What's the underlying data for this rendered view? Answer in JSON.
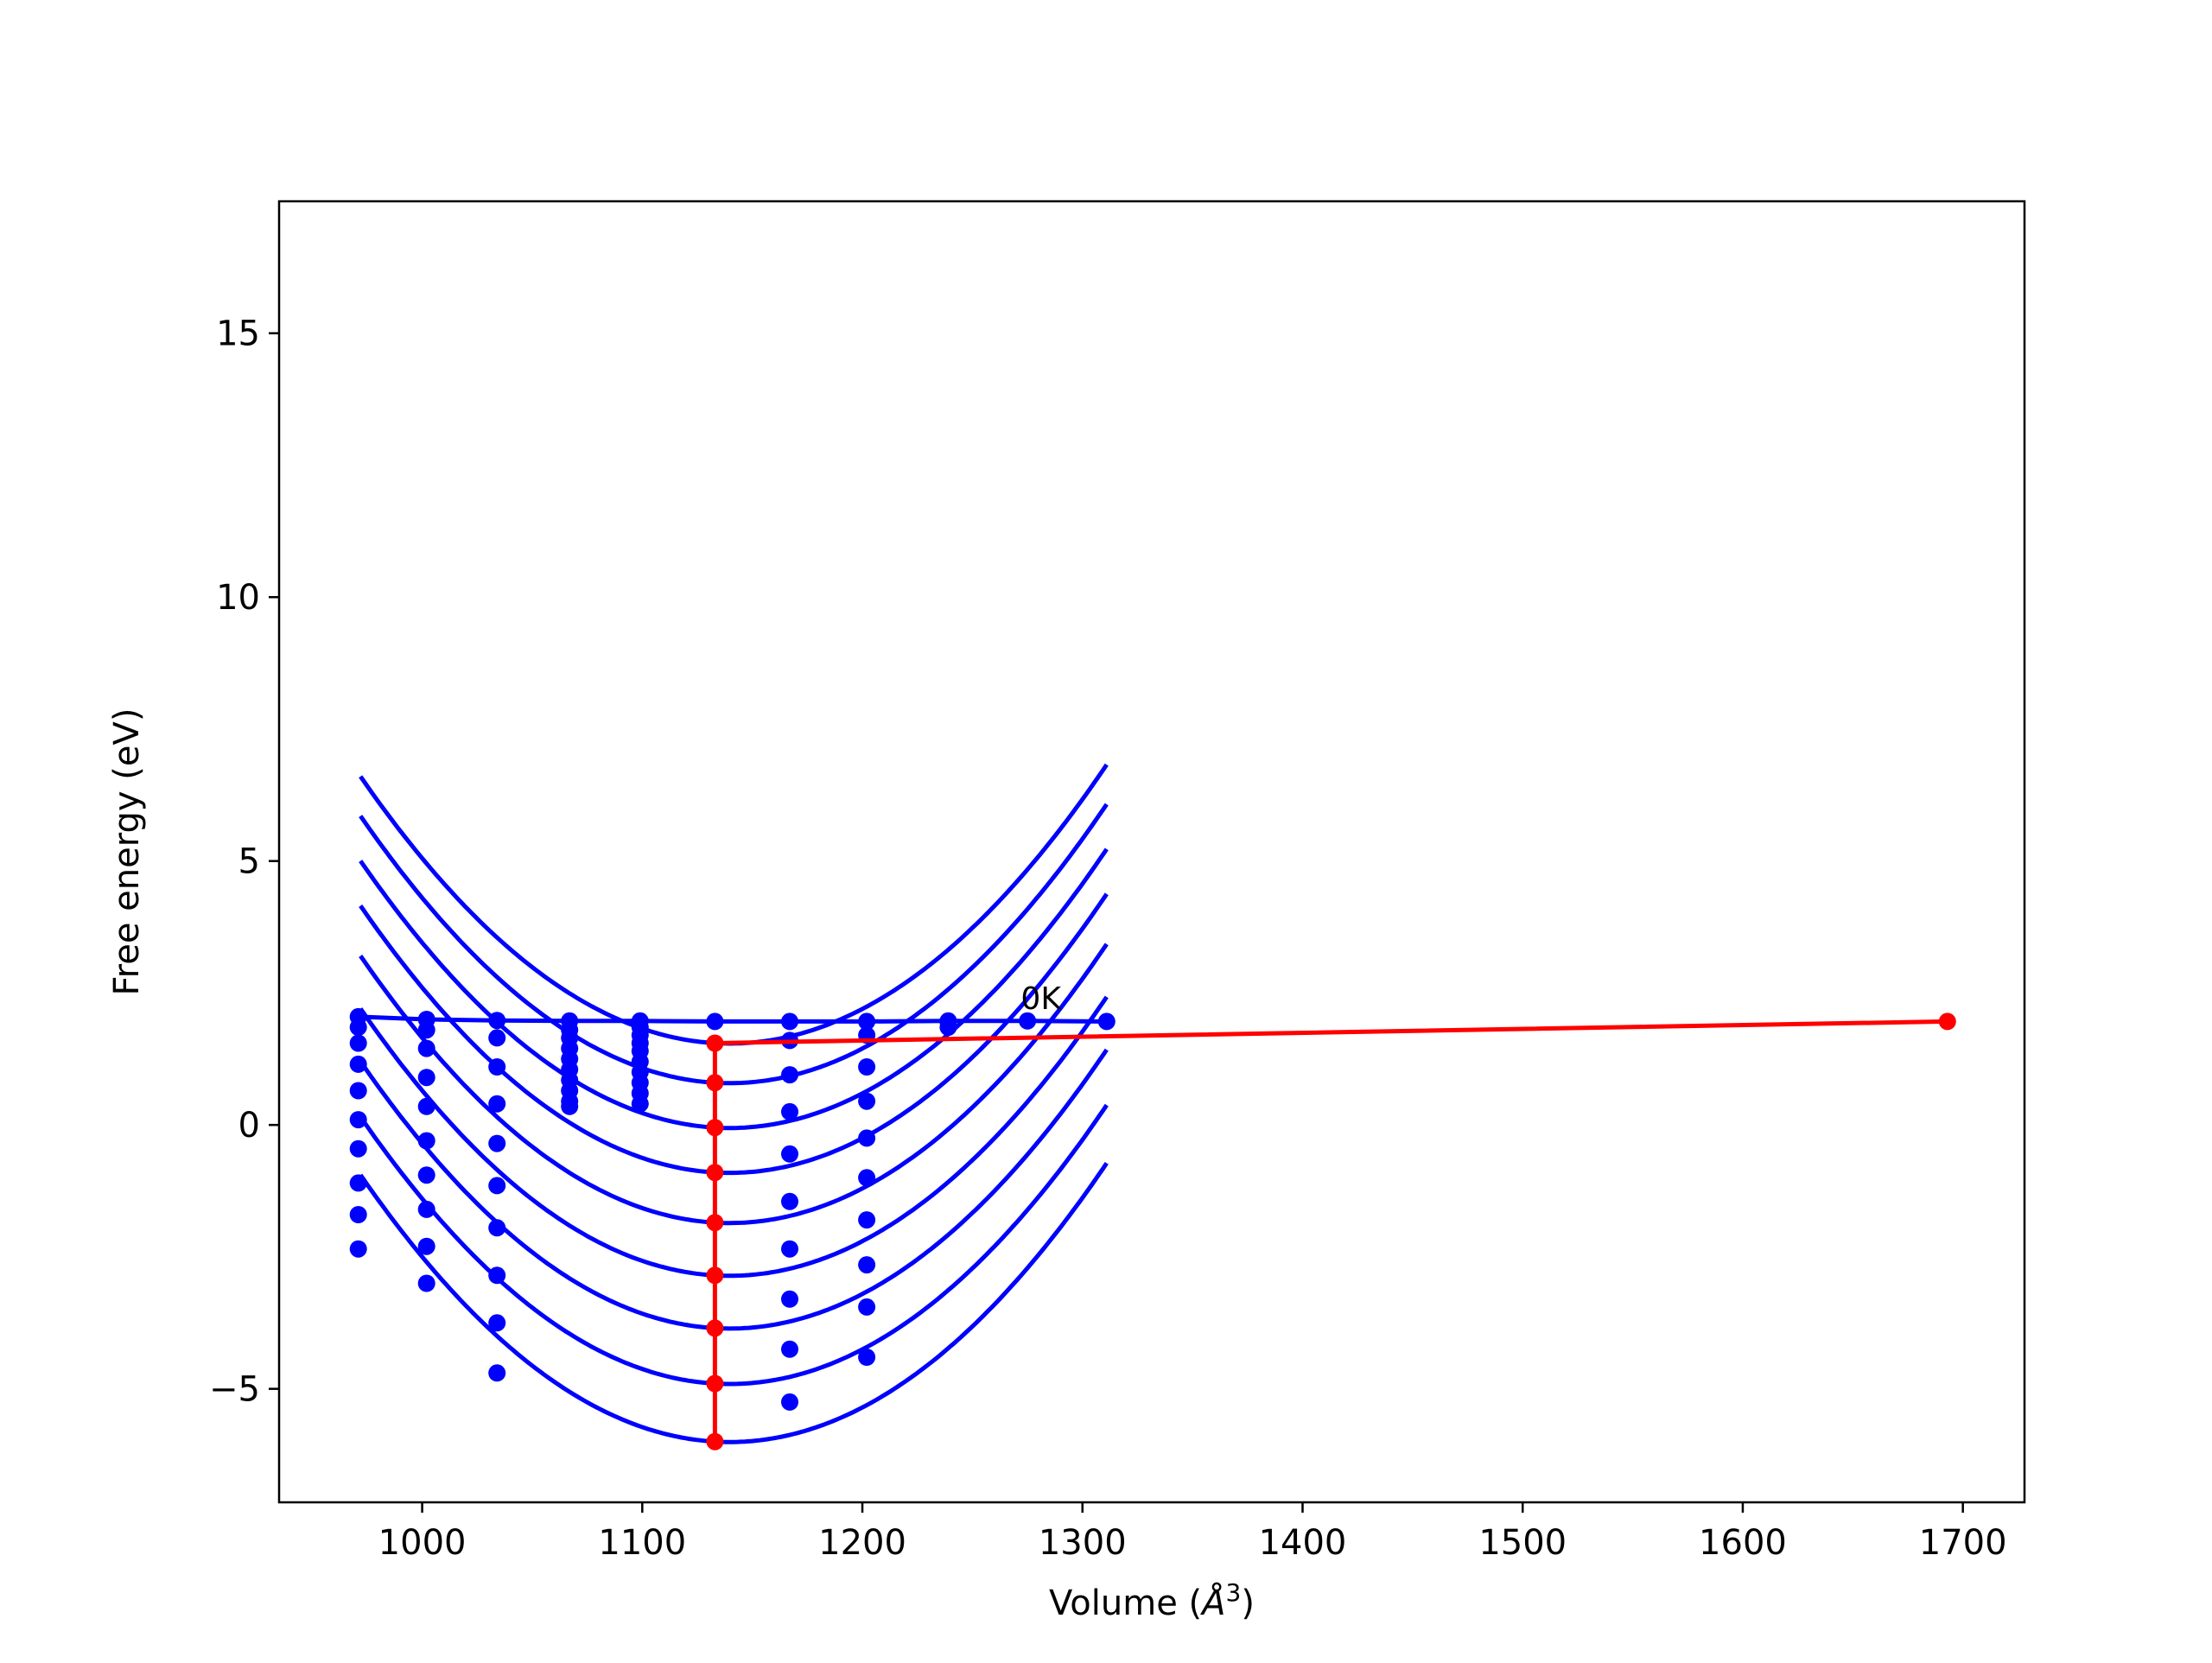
{
  "chart_data": {
    "type": "line",
    "title": "",
    "xlabel": "Volume",
    "xlabel_unit": "Å",
    "xlabel_unit_exp": "3",
    "ylabel": "Free energy (eV)",
    "xlim": [
      935,
      1728
    ],
    "ylim": [
      -7.15,
      17.5
    ],
    "xticks": [
      1000,
      1100,
      1200,
      1300,
      1400,
      1500,
      1600,
      1700
    ],
    "yticks": [
      -5,
      0,
      5,
      10,
      15
    ],
    "ytick_labels": [
      "−5",
      "0",
      "5",
      "10",
      "15"
    ],
    "grid": false,
    "colors": {
      "fit": "#0000ff",
      "points": "#0000ff",
      "path": "#ff0000"
    },
    "annotation": {
      "text": "0K",
      "x": 1272,
      "y": 2.2
    },
    "sample_volumes": [
      971,
      1002,
      1034,
      1067,
      1099,
      1133,
      1167,
      1202,
      1239,
      1275,
      1311
    ],
    "fit_curves": [
      {
        "v0": 1133,
        "f0": 1.55,
        "a": 0.00018,
        "b": 0.0024,
        "vmin": 972,
        "vmax": 1311
      },
      {
        "v0": 1133,
        "f0": 0.8,
        "a": 0.00018,
        "b": 0.0024,
        "vmin": 972,
        "vmax": 1311
      },
      {
        "v0": 1133,
        "f0": -0.05,
        "a": 0.00018,
        "b": 0.0024,
        "vmin": 972,
        "vmax": 1311
      },
      {
        "v0": 1133,
        "f0": -0.9,
        "a": 0.00018,
        "b": 0.0024,
        "vmin": 972,
        "vmax": 1311
      },
      {
        "v0": 1133,
        "f0": -1.85,
        "a": 0.00018,
        "b": 0.0024,
        "vmin": 972,
        "vmax": 1311
      },
      {
        "v0": 1133,
        "f0": -2.85,
        "a": 0.00018,
        "b": 0.0024,
        "vmin": 972,
        "vmax": 1311
      },
      {
        "v0": 1133,
        "f0": -3.85,
        "a": 0.00018,
        "b": 0.0024,
        "vmin": 972,
        "vmax": 1311
      },
      {
        "v0": 1133,
        "f0": -4.9,
        "a": 0.00018,
        "b": 0.0024,
        "vmin": 972,
        "vmax": 1311
      },
      {
        "v0": 1133,
        "f0": -6.0,
        "a": 0.00018,
        "b": 0.0024,
        "vmin": 972,
        "vmax": 1311
      }
    ],
    "series": [
      {
        "kind": "line+markers",
        "color": "#0000ff",
        "x": [
          971,
          1002,
          1034,
          1067,
          1099,
          1133,
          1167,
          1202,
          1239,
          1275,
          1311
        ],
        "y": [
          2.05,
          2.0,
          1.98,
          1.97,
          1.97,
          1.96,
          1.96,
          1.96,
          1.97,
          1.97,
          1.96
        ]
      },
      {
        "kind": "markers",
        "color": "#0000ff",
        "x": [
          971,
          971,
          971,
          971,
          971,
          971,
          971,
          971,
          971,
          1002,
          1002,
          1002,
          1002,
          1002,
          1002,
          1002,
          1002,
          1002,
          1034,
          1034,
          1034,
          1034,
          1034,
          1034,
          1034,
          1034,
          1034,
          1067,
          1067,
          1067,
          1067,
          1067,
          1067,
          1067,
          1067,
          1067,
          1099,
          1099,
          1099,
          1099,
          1099,
          1099,
          1099,
          1099,
          1099,
          1167,
          1167,
          1167,
          1167,
          1167,
          1167,
          1167,
          1167,
          1167,
          1202,
          1202,
          1202,
          1202,
          1202,
          1202,
          1202,
          1202,
          1202,
          1239,
          1239
        ],
        "y": [
          1.85,
          1.55,
          1.15,
          0.65,
          0.1,
          -0.45,
          -1.1,
          -1.7,
          -2.35,
          1.8,
          1.45,
          0.9,
          0.35,
          -0.3,
          -0.95,
          -1.6,
          -2.3,
          -3.0,
          1.65,
          1.1,
          0.4,
          -0.35,
          -1.15,
          -1.95,
          -2.85,
          -3.75,
          -4.7,
          1.8,
          1.65,
          1.45,
          1.25,
          1.05,
          0.85,
          0.65,
          0.45,
          0.35,
          1.85,
          1.7,
          1.55,
          1.4,
          1.2,
          1.0,
          0.8,
          0.6,
          0.4,
          1.6,
          0.95,
          0.25,
          -0.55,
          -1.45,
          -2.35,
          -3.3,
          -4.25,
          -5.25,
          1.7,
          1.1,
          0.45,
          -0.25,
          -1.0,
          -1.8,
          -2.65,
          -3.45,
          -4.4,
          1.95,
          1.85
        ]
      },
      {
        "kind": "line+markers",
        "color": "#ff0000",
        "x": [
          1133,
          1133,
          1133,
          1133,
          1133,
          1133,
          1133,
          1133,
          1133,
          1693
        ],
        "y": [
          -6.0,
          -4.9,
          -3.85,
          -2.85,
          -1.85,
          -0.9,
          -0.05,
          0.8,
          1.55,
          1.96
        ]
      }
    ]
  }
}
